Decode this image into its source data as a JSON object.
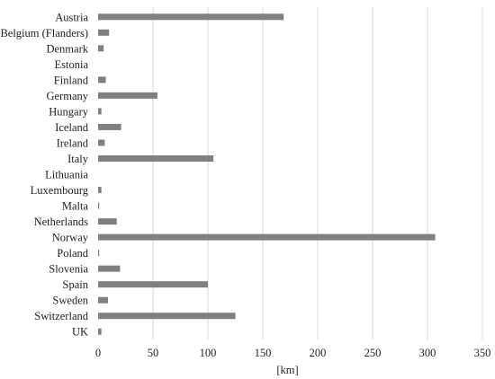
{
  "chart_data": {
    "type": "bar",
    "orientation": "horizontal",
    "title": "",
    "xlabel": "[km]",
    "ylabel": "",
    "xlim": [
      0,
      350
    ],
    "xticks": [
      0,
      50,
      100,
      150,
      200,
      250,
      300,
      350
    ],
    "grid": "vertical",
    "legend": "none",
    "bar_color": "#808080",
    "grid_color": "#d9d9d9",
    "categories": [
      "Austria",
      "Belgium (Flanders)",
      "Denmark",
      "Estonia",
      "Finland",
      "Germany",
      "Hungary",
      "Iceland",
      "Ireland",
      "Italy",
      "Lithuania",
      "Luxembourg",
      "Malta",
      "Netherlands",
      "Norway",
      "Poland",
      "Slovenia",
      "Spain",
      "Sweden",
      "Switzerland",
      "UK"
    ],
    "values": [
      169,
      10,
      5,
      0,
      7,
      54,
      3,
      21,
      6,
      105,
      0,
      3,
      1,
      17,
      307,
      1,
      20,
      100,
      9,
      125,
      3
    ]
  }
}
